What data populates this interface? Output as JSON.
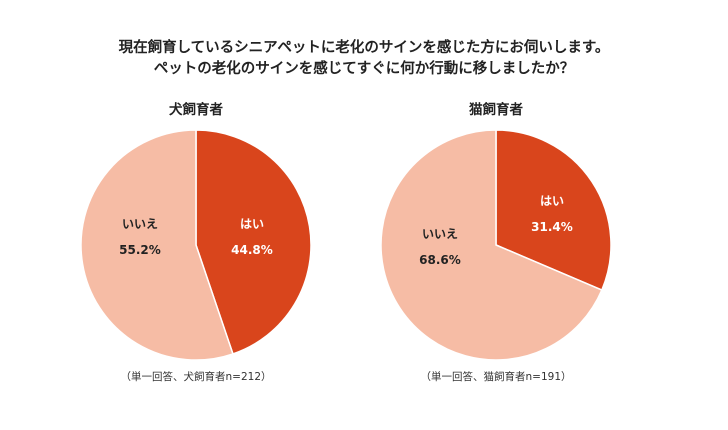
{
  "title_lines": [
    "現在飼育しているシニアペットに老化のサインを感じた方にお伺いします。",
    "ペットの老化のサインを感じてすぐに何か行動に移しましたか？"
  ],
  "colors": {
    "yes": "#d9451c",
    "no": "#f6bca5",
    "yes_text": "#ffffff",
    "no_text": "#222222"
  },
  "chart_data": [
    {
      "type": "pie",
      "title": "犬飼育者",
      "note": "（単一回答、犬飼育者n=212）",
      "slices": [
        {
          "label": "はい",
          "value": 44.8,
          "display": "44.8%"
        },
        {
          "label": "いいえ",
          "value": 55.2,
          "display": "55.2%"
        }
      ]
    },
    {
      "type": "pie",
      "title": "猫飼育者",
      "note": "（単一回答、猫飼育者n=191）",
      "slices": [
        {
          "label": "はい",
          "value": 31.4,
          "display": "31.4%"
        },
        {
          "label": "いいえ",
          "value": 68.6,
          "display": "68.6%"
        }
      ]
    }
  ]
}
